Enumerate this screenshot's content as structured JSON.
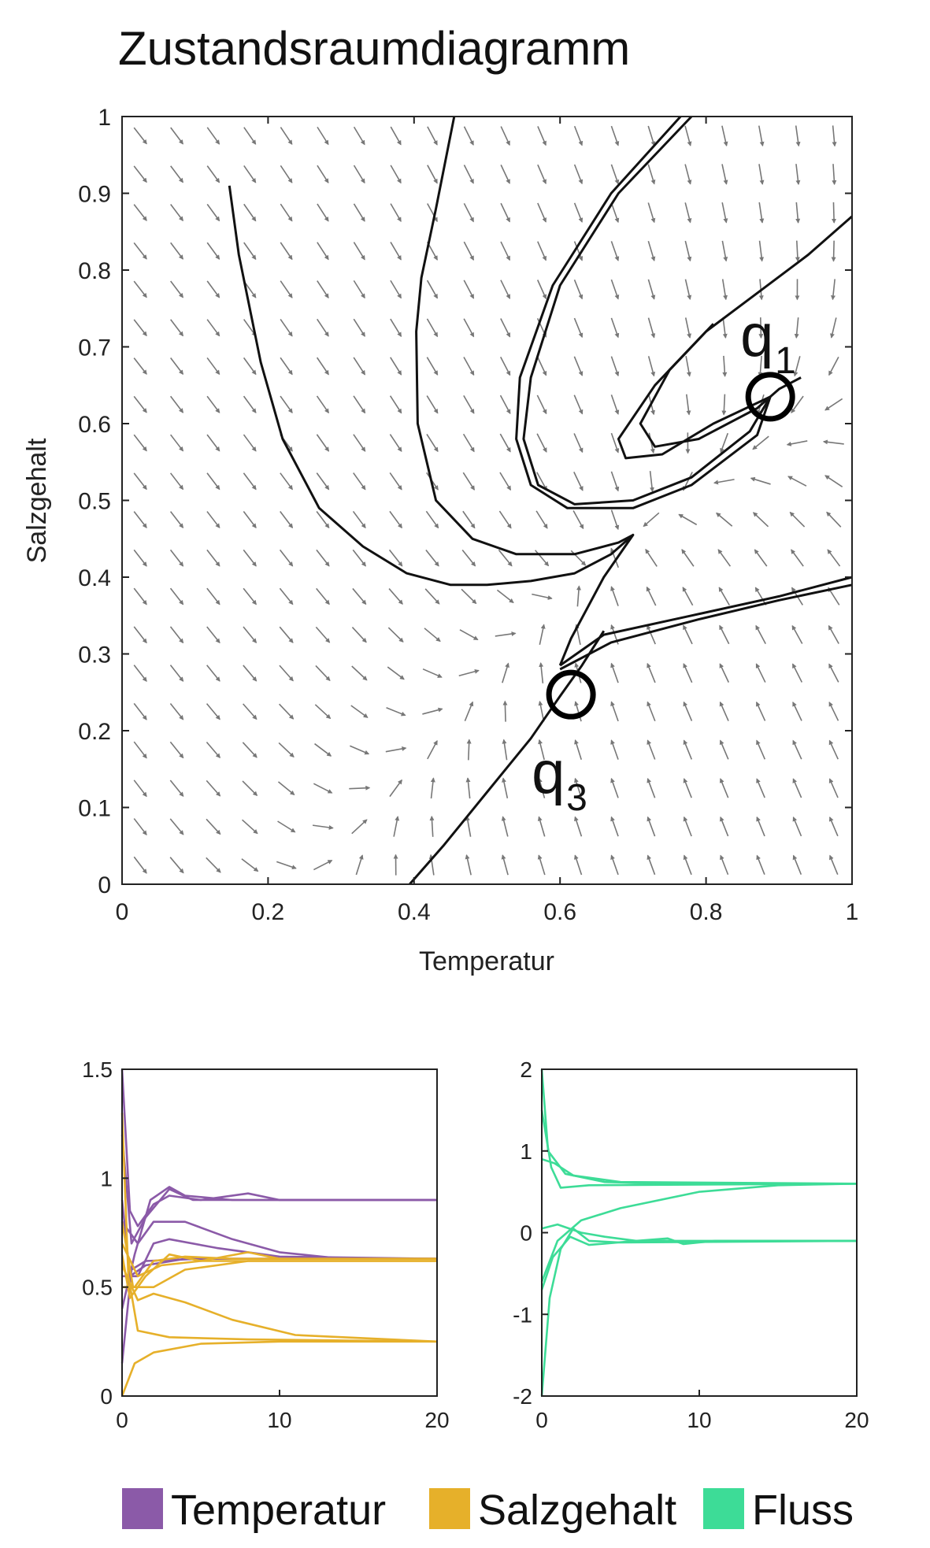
{
  "chart_data": [
    {
      "type": "vector-field",
      "title": "Zustandsraumdiagramm",
      "xlabel": "Temperatur",
      "ylabel": "Salzgehalt",
      "xlim": [
        0,
        1
      ],
      "ylim": [
        0,
        1
      ],
      "xticks": [
        "0",
        "0.2",
        "0.4",
        "0.6",
        "0.8",
        "1"
      ],
      "yticks": [
        "0",
        "0.1",
        "0.2",
        "0.3",
        "0.4",
        "0.5",
        "0.6",
        "0.7",
        "0.8",
        "0.9",
        "1"
      ],
      "fixed_points": [
        {
          "label": "q",
          "sub": "1",
          "x": 0.888,
          "y": 0.635
        },
        {
          "label": "q",
          "sub": "3",
          "x": 0.615,
          "y": 0.247
        }
      ],
      "trajectories": [
        [
          [
            0.147,
            0.91
          ],
          [
            0.16,
            0.82
          ],
          [
            0.19,
            0.68
          ],
          [
            0.22,
            0.58
          ],
          [
            0.27,
            0.49
          ],
          [
            0.33,
            0.44
          ],
          [
            0.39,
            0.405
          ],
          [
            0.45,
            0.39
          ],
          [
            0.5,
            0.39
          ],
          [
            0.56,
            0.395
          ],
          [
            0.62,
            0.405
          ],
          [
            0.67,
            0.43
          ],
          [
            0.7,
            0.455
          ],
          [
            0.66,
            0.4
          ],
          [
            0.615,
            0.32
          ],
          [
            0.6,
            0.285
          ]
        ],
        [
          [
            0.455,
            1.0
          ],
          [
            0.43,
            0.88
          ],
          [
            0.41,
            0.79
          ],
          [
            0.403,
            0.72
          ],
          [
            0.405,
            0.6
          ],
          [
            0.43,
            0.5
          ],
          [
            0.48,
            0.45
          ],
          [
            0.54,
            0.43
          ],
          [
            0.62,
            0.43
          ],
          [
            0.68,
            0.445
          ],
          [
            0.7,
            0.455
          ]
        ],
        [
          [
            0.78,
            1.0
          ],
          [
            0.68,
            0.9
          ],
          [
            0.6,
            0.78
          ],
          [
            0.56,
            0.66
          ],
          [
            0.55,
            0.58
          ],
          [
            0.57,
            0.52
          ],
          [
            0.62,
            0.495
          ],
          [
            0.7,
            0.5
          ],
          [
            0.78,
            0.53
          ],
          [
            0.86,
            0.59
          ],
          [
            0.888,
            0.635
          ]
        ],
        [
          [
            0.765,
            1.0
          ],
          [
            0.67,
            0.9
          ],
          [
            0.59,
            0.78
          ],
          [
            0.545,
            0.66
          ],
          [
            0.54,
            0.58
          ],
          [
            0.56,
            0.52
          ],
          [
            0.61,
            0.49
          ],
          [
            0.7,
            0.49
          ],
          [
            0.78,
            0.52
          ],
          [
            0.87,
            0.585
          ],
          [
            0.888,
            0.635
          ]
        ],
        [
          [
            1.0,
            0.87
          ],
          [
            0.94,
            0.82
          ],
          [
            0.87,
            0.77
          ],
          [
            0.8,
            0.72
          ],
          [
            0.73,
            0.65
          ],
          [
            0.68,
            0.58
          ],
          [
            0.69,
            0.555
          ],
          [
            0.74,
            0.56
          ],
          [
            0.81,
            0.6
          ],
          [
            0.888,
            0.635
          ]
        ],
        [
          [
            0.81,
            0.73
          ],
          [
            0.75,
            0.67
          ],
          [
            0.71,
            0.6
          ],
          [
            0.73,
            0.57
          ],
          [
            0.79,
            0.58
          ],
          [
            0.87,
            0.62
          ],
          [
            0.9,
            0.645
          ],
          [
            0.93,
            0.66
          ]
        ],
        [
          [
            0.6,
            0.285
          ],
          [
            0.66,
            0.325
          ],
          [
            0.78,
            0.35
          ],
          [
            0.9,
            0.375
          ],
          [
            1.0,
            0.4
          ]
        ],
        [
          [
            0.6,
            0.28
          ],
          [
            0.67,
            0.315
          ],
          [
            0.79,
            0.345
          ],
          [
            0.9,
            0.37
          ],
          [
            1.0,
            0.39
          ]
        ],
        [
          [
            0.394,
            0.0
          ],
          [
            0.44,
            0.05
          ],
          [
            0.5,
            0.12
          ],
          [
            0.56,
            0.19
          ],
          [
            0.6,
            0.245
          ],
          [
            0.63,
            0.285
          ],
          [
            0.66,
            0.33
          ]
        ]
      ]
    },
    {
      "type": "line",
      "xlim": [
        0,
        20
      ],
      "ylim": [
        0,
        1.5
      ],
      "xticks": [
        "0",
        "10",
        "20"
      ],
      "yticks": [
        "0",
        "0.5",
        "1",
        "1.5"
      ],
      "series": [
        {
          "name": "Temperatur",
          "color": "#8b5aa8",
          "lines": [
            [
              [
                0,
                1.5
              ],
              [
                0.5,
                0.85
              ],
              [
                1,
                0.78
              ],
              [
                2,
                0.88
              ],
              [
                3,
                0.92
              ],
              [
                5,
                0.9
              ],
              [
                8,
                0.93
              ],
              [
                10,
                0.9
              ],
              [
                20,
                0.9
              ]
            ],
            [
              [
                0,
                1.2
              ],
              [
                0.6,
                0.7
              ],
              [
                1.5,
                0.82
              ],
              [
                3,
                0.95
              ],
              [
                4.5,
                0.9
              ],
              [
                6,
                0.9
              ],
              [
                20,
                0.9
              ]
            ],
            [
              [
                0,
                0.4
              ],
              [
                0.8,
                0.65
              ],
              [
                1.8,
                0.9
              ],
              [
                3,
                0.96
              ],
              [
                4,
                0.92
              ],
              [
                7,
                0.9
              ],
              [
                20,
                0.9
              ]
            ],
            [
              [
                0,
                0.8
              ],
              [
                1,
                0.7
              ],
              [
                2,
                0.8
              ],
              [
                4,
                0.8
              ],
              [
                7,
                0.72
              ],
              [
                10,
                0.66
              ],
              [
                14,
                0.63
              ],
              [
                20,
                0.63
              ]
            ],
            [
              [
                0,
                0.55
              ],
              [
                1,
                0.55
              ],
              [
                2,
                0.7
              ],
              [
                3,
                0.72
              ],
              [
                6,
                0.68
              ],
              [
                10,
                0.64
              ],
              [
                20,
                0.63
              ]
            ],
            [
              [
                0,
                0.15
              ],
              [
                0.6,
                0.58
              ],
              [
                1.5,
                0.62
              ],
              [
                5,
                0.63
              ],
              [
                20,
                0.63
              ]
            ],
            [
              [
                0,
                0.9
              ],
              [
                0.5,
                0.55
              ],
              [
                1.5,
                0.6
              ],
              [
                4,
                0.63
              ],
              [
                20,
                0.63
              ]
            ]
          ]
        },
        {
          "name": "Salzgehalt",
          "color": "#e6b02a",
          "lines": [
            [
              [
                0,
                1.3
              ],
              [
                0.4,
                0.55
              ],
              [
                1,
                0.3
              ],
              [
                3,
                0.27
              ],
              [
                8,
                0.26
              ],
              [
                20,
                0.25
              ]
            ],
            [
              [
                0,
                0.0
              ],
              [
                0.8,
                0.15
              ],
              [
                2,
                0.2
              ],
              [
                5,
                0.24
              ],
              [
                10,
                0.25
              ],
              [
                20,
                0.25
              ]
            ],
            [
              [
                0,
                0.6
              ],
              [
                1,
                0.44
              ],
              [
                2,
                0.47
              ],
              [
                4,
                0.43
              ],
              [
                7,
                0.35
              ],
              [
                11,
                0.28
              ],
              [
                20,
                0.25
              ]
            ],
            [
              [
                0,
                0.65
              ],
              [
                0.5,
                0.45
              ],
              [
                1.5,
                0.55
              ],
              [
                3,
                0.65
              ],
              [
                5,
                0.62
              ],
              [
                8,
                0.66
              ],
              [
                10,
                0.63
              ],
              [
                20,
                0.63
              ]
            ],
            [
              [
                0,
                0.5
              ],
              [
                0.8,
                0.5
              ],
              [
                2,
                0.62
              ],
              [
                4,
                0.64
              ],
              [
                7,
                0.63
              ],
              [
                20,
                0.63
              ]
            ],
            [
              [
                0,
                0.7
              ],
              [
                1,
                0.55
              ],
              [
                2.5,
                0.6
              ],
              [
                5,
                0.62
              ],
              [
                20,
                0.62
              ]
            ],
            [
              [
                0,
                0.8
              ],
              [
                0.7,
                0.5
              ],
              [
                2,
                0.5
              ],
              [
                4,
                0.58
              ],
              [
                8,
                0.62
              ],
              [
                20,
                0.62
              ]
            ]
          ]
        }
      ]
    },
    {
      "type": "line",
      "xlim": [
        0,
        20
      ],
      "ylim": [
        -2,
        2
      ],
      "xticks": [
        "0",
        "10",
        "20"
      ],
      "yticks": [
        "-2",
        "-1",
        "0",
        "1",
        "2"
      ],
      "series": [
        {
          "name": "Fluss",
          "color": "#3ddc97",
          "lines": [
            [
              [
                0,
                2.0
              ],
              [
                0.4,
                1.0
              ],
              [
                1.5,
                0.72
              ],
              [
                4,
                0.62
              ],
              [
                8,
                0.6
              ],
              [
                20,
                0.6
              ]
            ],
            [
              [
                0,
                1.5
              ],
              [
                0.6,
                0.8
              ],
              [
                1.2,
                0.55
              ],
              [
                3,
                0.58
              ],
              [
                20,
                0.6
              ]
            ],
            [
              [
                0,
                0.9
              ],
              [
                0.8,
                0.85
              ],
              [
                2,
                0.7
              ],
              [
                5,
                0.62
              ],
              [
                20,
                0.6
              ]
            ],
            [
              [
                0,
                -0.6
              ],
              [
                1,
                -0.1
              ],
              [
                2.5,
                0.15
              ],
              [
                5,
                0.3
              ],
              [
                10,
                0.5
              ],
              [
                15,
                0.58
              ],
              [
                20,
                0.6
              ]
            ],
            [
              [
                0,
                0.05
              ],
              [
                1,
                0.1
              ],
              [
                2.5,
                0.0
              ],
              [
                4,
                -0.05
              ],
              [
                6,
                -0.1
              ],
              [
                8,
                -0.07
              ],
              [
                9,
                -0.14
              ],
              [
                11,
                -0.1
              ],
              [
                20,
                -0.1
              ]
            ],
            [
              [
                0,
                -2.0
              ],
              [
                0.5,
                -0.8
              ],
              [
                1.2,
                -0.2
              ],
              [
                2,
                0.05
              ],
              [
                3,
                -0.1
              ],
              [
                5,
                -0.12
              ],
              [
                20,
                -0.1
              ]
            ],
            [
              [
                0,
                -0.7
              ],
              [
                0.7,
                -0.3
              ],
              [
                1.8,
                -0.05
              ],
              [
                3,
                -0.15
              ],
              [
                6,
                -0.1
              ],
              [
                20,
                -0.1
              ]
            ]
          ]
        }
      ]
    }
  ],
  "legend": [
    {
      "label": "Temperatur",
      "color": "#8b5aa8"
    },
    {
      "label": "Salzgehalt",
      "color": "#e6b02a"
    },
    {
      "label": "Fluss",
      "color": "#3ddc97"
    }
  ]
}
